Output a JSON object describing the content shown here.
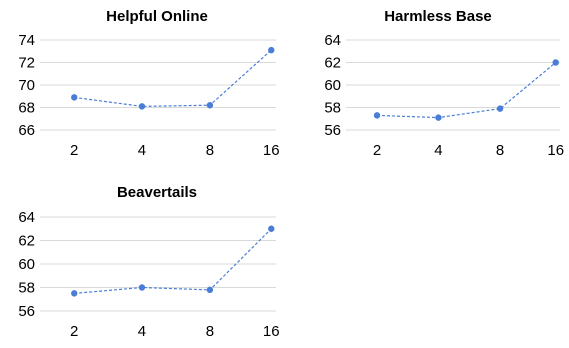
{
  "chart_data": [
    {
      "type": "line",
      "title": "Helpful Online",
      "categories": [
        "2",
        "4",
        "8",
        "16"
      ],
      "values": [
        68.9,
        68.1,
        68.2,
        73.1
      ],
      "yticks": [
        66,
        68,
        70,
        72,
        74
      ],
      "ylim": [
        66,
        74
      ],
      "grid": true,
      "color": "#4a7ed6"
    },
    {
      "type": "line",
      "title": "Harmless Base",
      "categories": [
        "2",
        "4",
        "8",
        "16"
      ],
      "values": [
        57.3,
        57.1,
        57.9,
        62.0
      ],
      "yticks": [
        56,
        58,
        60,
        62,
        64
      ],
      "ylim": [
        56,
        64
      ],
      "grid": true,
      "color": "#4a7ed6"
    },
    {
      "type": "line",
      "title": "Beavertails",
      "categories": [
        "2",
        "4",
        "8",
        "16"
      ],
      "values": [
        57.5,
        58.0,
        57.8,
        63.0
      ],
      "yticks": [
        56,
        58,
        60,
        62,
        64
      ],
      "ylim": [
        56,
        64
      ],
      "grid": true,
      "color": "#4a7ed6"
    }
  ]
}
